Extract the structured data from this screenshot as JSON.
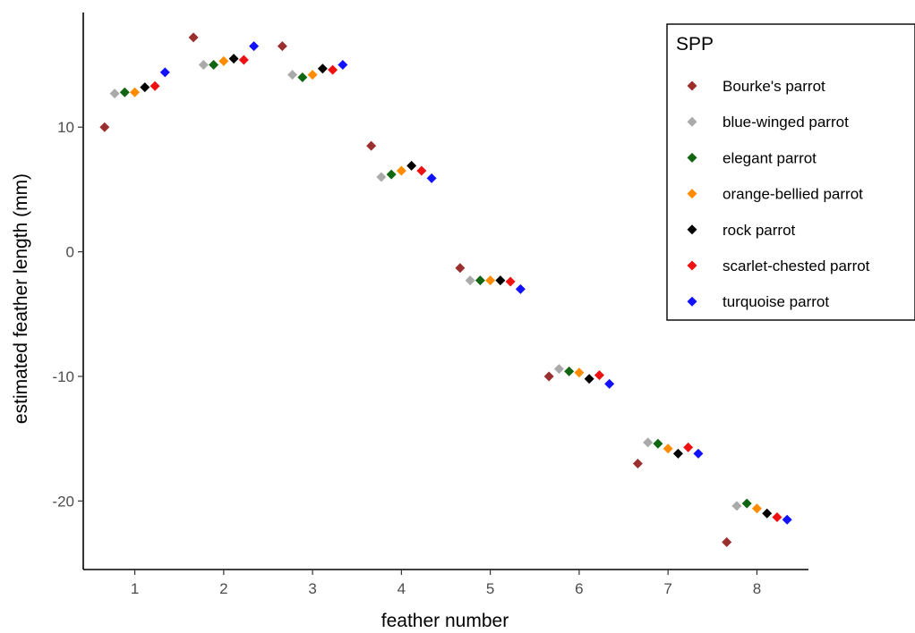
{
  "chart_data": {
    "type": "scatter",
    "title": "",
    "xlabel": "feather number",
    "ylabel": "estimated feather length (mm)",
    "x_categories": [
      1,
      2,
      3,
      4,
      5,
      6,
      7,
      8
    ],
    "x_tick_labels": [
      "1",
      "2",
      "3",
      "4",
      "5",
      "6",
      "7",
      "8"
    ],
    "y_ticks": [
      10,
      0,
      -10,
      -20
    ],
    "y_tick_labels": [
      "10",
      "0",
      "-10",
      "-20"
    ],
    "xlim": [
      0.42,
      8.58
    ],
    "ylim": [
      -25.5,
      19.2
    ],
    "grid": false,
    "marker": "diamond",
    "legend": {
      "title": "SPP",
      "placement": "top-right"
    },
    "series": [
      {
        "name": "Bourke's parrot",
        "color": "#9b2f2f",
        "values": [
          10.0,
          17.2,
          16.5,
          8.5,
          -1.3,
          -10.0,
          -17.0,
          -23.3
        ]
      },
      {
        "name": "blue-winged parrot",
        "color": "#aaaaaa",
        "values": [
          12.7,
          15.0,
          14.2,
          6.0,
          -2.3,
          -9.4,
          -15.3,
          -20.4
        ]
      },
      {
        "name": "elegant parrot",
        "color": "#116611",
        "values": [
          12.8,
          15.0,
          14.0,
          6.2,
          -2.3,
          -9.6,
          -15.4,
          -20.2
        ]
      },
      {
        "name": "orange-bellied parrot",
        "color": "#ff8c00",
        "values": [
          12.8,
          15.3,
          14.2,
          6.5,
          -2.3,
          -9.7,
          -15.8,
          -20.6
        ]
      },
      {
        "name": "rock parrot",
        "color": "#000000",
        "values": [
          13.2,
          15.5,
          14.7,
          6.9,
          -2.3,
          -10.2,
          -16.2,
          -21.0
        ]
      },
      {
        "name": "scarlet-chested parrot",
        "color": "#ee1111",
        "values": [
          13.3,
          15.4,
          14.6,
          6.5,
          -2.4,
          -9.9,
          -15.7,
          -21.3
        ]
      },
      {
        "name": "turquoise parrot",
        "color": "#1111ff",
        "values": [
          14.4,
          16.5,
          15.0,
          5.9,
          -3.0,
          -10.6,
          -16.2,
          -21.5
        ]
      }
    ]
  }
}
